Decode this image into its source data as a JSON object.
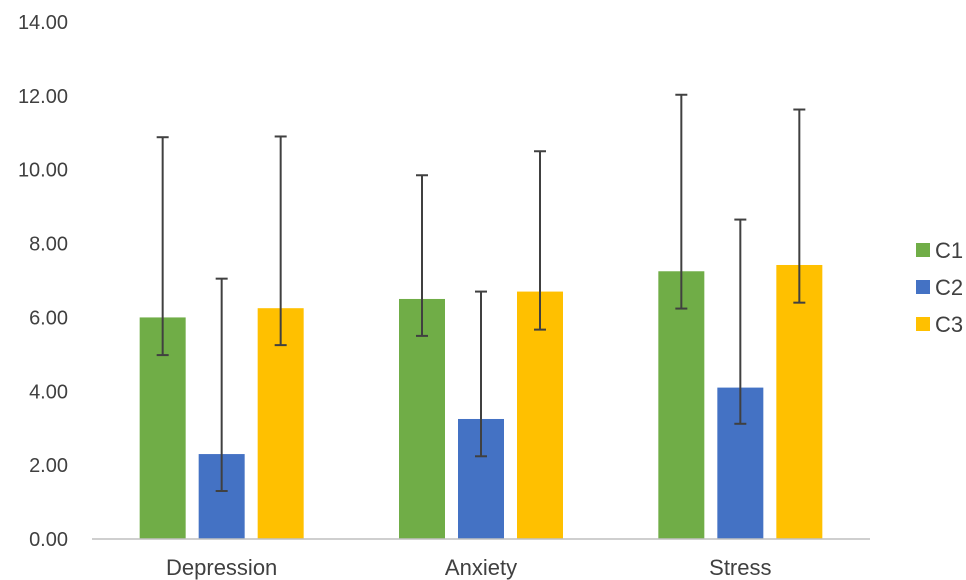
{
  "chart_data": {
    "type": "bar",
    "categories": [
      "Depression",
      "Anxiety",
      "Stress"
    ],
    "series": [
      {
        "name": "C1",
        "color": "#70AD47",
        "values": [
          6.0,
          6.5,
          7.25
        ],
        "error_low": [
          4.98,
          5.5,
          6.24
        ],
        "error_high": [
          10.88,
          9.85,
          12.03
        ]
      },
      {
        "name": "C2",
        "color": "#4472C4",
        "values": [
          2.3,
          3.25,
          4.1
        ],
        "error_low": [
          1.3,
          2.24,
          3.12
        ],
        "error_high": [
          7.05,
          6.7,
          8.65
        ]
      },
      {
        "name": "C3",
        "color": "#FFC000",
        "values": [
          6.25,
          6.7,
          7.42
        ],
        "error_low": [
          5.25,
          5.67,
          6.4
        ],
        "error_high": [
          10.9,
          10.5,
          11.63
        ]
      }
    ],
    "yticks": [
      "0.00",
      "2.00",
      "4.00",
      "6.00",
      "8.00",
      "10.00",
      "12.00",
      "14.00"
    ],
    "ylim": [
      0,
      14
    ],
    "grid": false,
    "legend_position": "right"
  }
}
